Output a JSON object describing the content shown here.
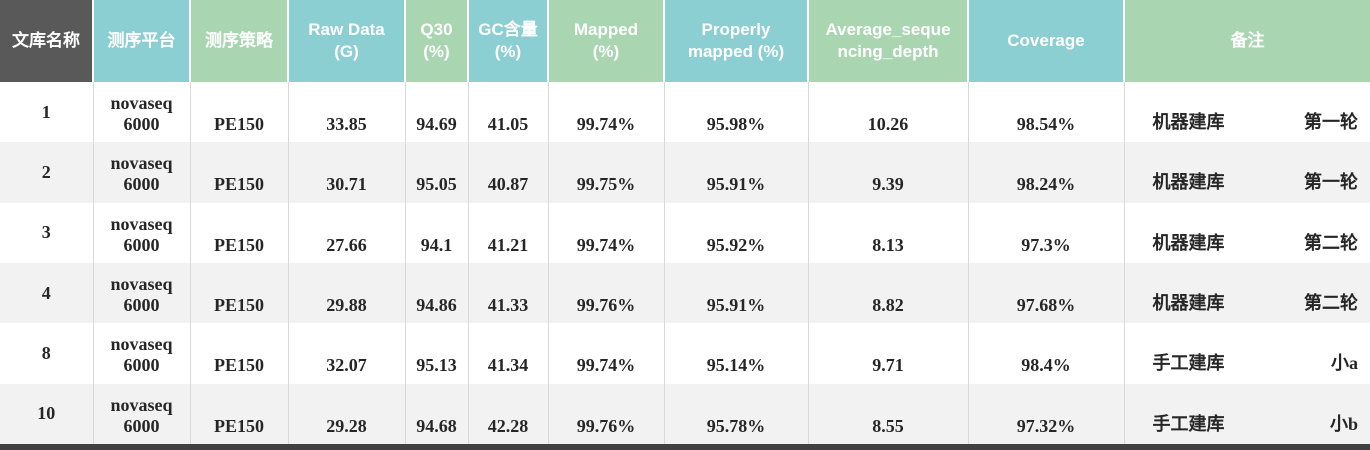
{
  "table": {
    "columns": [
      {
        "id": "library",
        "label": "文库名称"
      },
      {
        "id": "platform",
        "label": "测序平台"
      },
      {
        "id": "strategy",
        "label": "测序策略"
      },
      {
        "id": "raw_data",
        "label": "Raw Data\n(G)"
      },
      {
        "id": "q30",
        "label": "Q30\n(%)"
      },
      {
        "id": "gc",
        "label": "GC含量\n(%)"
      },
      {
        "id": "mapped",
        "label": "Mapped\n(%)"
      },
      {
        "id": "properly_mapped",
        "label": "Properly\nmapped (%)"
      },
      {
        "id": "avg_depth",
        "label": "Average_seque\nncing_depth"
      },
      {
        "id": "coverage",
        "label": "Coverage"
      },
      {
        "id": "remark",
        "label": "备注"
      }
    ],
    "rows": [
      {
        "library": "1",
        "platform": "novaseq\n6000",
        "strategy": "PE150",
        "raw_data": "33.85",
        "q30": "94.69",
        "gc": "41.05",
        "mapped": "99.74%",
        "properly_mapped": "95.98%",
        "avg_depth": "10.26",
        "coverage": "98.54%",
        "remark_method": "机器建库",
        "remark_batch": "第一轮"
      },
      {
        "library": "2",
        "platform": "novaseq\n6000",
        "strategy": "PE150",
        "raw_data": "30.71",
        "q30": "95.05",
        "gc": "40.87",
        "mapped": "99.75%",
        "properly_mapped": "95.91%",
        "avg_depth": "9.39",
        "coverage": "98.24%",
        "remark_method": "机器建库",
        "remark_batch": "第一轮"
      },
      {
        "library": "3",
        "platform": "novaseq\n6000",
        "strategy": "PE150",
        "raw_data": "27.66",
        "q30": "94.1",
        "gc": "41.21",
        "mapped": "99.74%",
        "properly_mapped": "95.92%",
        "avg_depth": "8.13",
        "coverage": "97.3%",
        "remark_method": "机器建库",
        "remark_batch": "第二轮"
      },
      {
        "library": "4",
        "platform": "novaseq\n6000",
        "strategy": "PE150",
        "raw_data": "29.88",
        "q30": "94.86",
        "gc": "41.33",
        "mapped": "99.76%",
        "properly_mapped": "95.91%",
        "avg_depth": "8.82",
        "coverage": "97.68%",
        "remark_method": "机器建库",
        "remark_batch": "第二轮"
      },
      {
        "library": "8",
        "platform": "novaseq\n6000",
        "strategy": "PE150",
        "raw_data": "32.07",
        "q30": "95.13",
        "gc": "41.34",
        "mapped": "99.74%",
        "properly_mapped": "95.14%",
        "avg_depth": "9.71",
        "coverage": "98.4%",
        "remark_method": "手工建库",
        "remark_batch": "小a"
      },
      {
        "library": "10",
        "platform": "novaseq\n6000",
        "strategy": "PE150",
        "raw_data": "29.28",
        "q30": "94.68",
        "gc": "42.28",
        "mapped": "99.76%",
        "properly_mapped": "95.78%",
        "avg_depth": "8.55",
        "coverage": "97.32%",
        "remark_method": "手工建库",
        "remark_batch": "小b"
      }
    ]
  },
  "colors": {
    "header_dark": "#595959",
    "header_teal": "#8CCFD3",
    "header_green": "#A9D6B0",
    "row_alt": "#F2F2F2",
    "cell_border": "#D9D9D9",
    "data_text": "#262626",
    "bottom_bar": "#404040"
  }
}
